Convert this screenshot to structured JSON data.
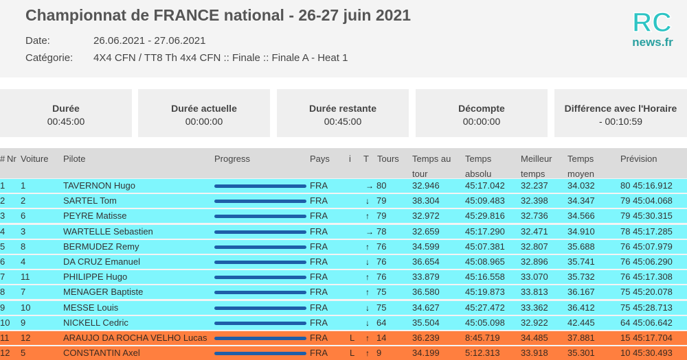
{
  "header": {
    "title": "Championnat de FRANCE national - 26-27 juin 2021",
    "date_label": "Date:",
    "date_value": "26.06.2021 - 27.06.2021",
    "category_label": "Catégorie:",
    "category_value": "4X4 CFN / TT8 Th 4x4 CFN :: Finale :: Finale A - Heat 1"
  },
  "logo": {
    "top": "RC",
    "bottom": "news.fr",
    "color_top": "#2ec4c4",
    "color_bottom": "#2aa0a0"
  },
  "cards": [
    {
      "label": "Durée",
      "value": "00:45:00"
    },
    {
      "label": "Durée actuelle",
      "value": "00:00:00"
    },
    {
      "label": "Durée restante",
      "value": "00:45:00"
    },
    {
      "label": "Décompte",
      "value": "00:00:00"
    },
    {
      "label": "Différence avec l'Horaire",
      "value": "- 00:10:59"
    }
  ],
  "columns": {
    "pos": "#",
    "nr": "Nr",
    "voiture": "Voiture",
    "pilote": "Pilote",
    "progress": "Progress",
    "pays": "Pays",
    "i": "i",
    "t": "T",
    "tours": "Tours",
    "temps_tour_1": "Temps au",
    "temps_tour_2": "tour",
    "temps_abs_1": "Temps",
    "temps_abs_2": "absolu",
    "meilleur_1": "Meilleur",
    "meilleur_2": "temps",
    "moyen_1": "Temps",
    "moyen_2": "moyen",
    "prevision": "Prévision"
  },
  "colors": {
    "cyan_row": "#7ff6fd",
    "orange_row": "#ff7f3f",
    "progress_bar": "#1e5ea8"
  },
  "rows": [
    {
      "pos": "1",
      "voiture": "1",
      "pilote": "TAVERNON Hugo",
      "pays": "FRA",
      "i": "",
      "trend": "right-arrow-icon",
      "arrow": "→",
      "tours": "80",
      "temps_tour": "32.946",
      "temps_abs": "45:17.042",
      "meilleur": "32.237",
      "moyen": "34.032",
      "prevision": "80 45:16.912",
      "status": "cyan"
    },
    {
      "pos": "2",
      "voiture": "2",
      "pilote": "SARTEL Tom",
      "pays": "FRA",
      "i": "",
      "trend": "down-arrow-icon",
      "arrow": "↓",
      "tours": "79",
      "temps_tour": "38.304",
      "temps_abs": "45:09.483",
      "meilleur": "32.398",
      "moyen": "34.347",
      "prevision": "79 45:04.068",
      "status": "cyan"
    },
    {
      "pos": "3",
      "voiture": "6",
      "pilote": "PEYRE Matisse",
      "pays": "FRA",
      "i": "",
      "trend": "up-arrow-icon",
      "arrow": "↑",
      "tours": "79",
      "temps_tour": "32.972",
      "temps_abs": "45:29.816",
      "meilleur": "32.736",
      "moyen": "34.566",
      "prevision": "79 45:30.315",
      "status": "cyan"
    },
    {
      "pos": "4",
      "voiture": "3",
      "pilote": "WARTELLE Sebastien",
      "pays": "FRA",
      "i": "",
      "trend": "right-arrow-icon",
      "arrow": "→",
      "tours": "78",
      "temps_tour": "32.659",
      "temps_abs": "45:17.290",
      "meilleur": "32.471",
      "moyen": "34.910",
      "prevision": "78 45:17.285",
      "status": "cyan"
    },
    {
      "pos": "5",
      "voiture": "8",
      "pilote": "BERMUDEZ Remy",
      "pays": "FRA",
      "i": "",
      "trend": "up-arrow-icon",
      "arrow": "↑",
      "tours": "76",
      "temps_tour": "34.599",
      "temps_abs": "45:07.381",
      "meilleur": "32.807",
      "moyen": "35.688",
      "prevision": "76 45:07.979",
      "status": "cyan"
    },
    {
      "pos": "6",
      "voiture": "4",
      "pilote": "DA CRUZ Emanuel",
      "pays": "FRA",
      "i": "",
      "trend": "down-arrow-icon",
      "arrow": "↓",
      "tours": "76",
      "temps_tour": "36.654",
      "temps_abs": "45:08.965",
      "meilleur": "32.896",
      "moyen": "35.741",
      "prevision": "76 45:06.290",
      "status": "cyan"
    },
    {
      "pos": "7",
      "voiture": "11",
      "pilote": "PHILIPPE Hugo",
      "pays": "FRA",
      "i": "",
      "trend": "up-arrow-icon",
      "arrow": "↑",
      "tours": "76",
      "temps_tour": "33.879",
      "temps_abs": "45:16.558",
      "meilleur": "33.070",
      "moyen": "35.732",
      "prevision": "76 45:17.308",
      "status": "cyan"
    },
    {
      "pos": "8",
      "voiture": "7",
      "pilote": "MENAGER Baptiste",
      "pays": "FRA",
      "i": "",
      "trend": "up-arrow-icon",
      "arrow": "↑",
      "tours": "75",
      "temps_tour": "36.580",
      "temps_abs": "45:19.873",
      "meilleur": "33.813",
      "moyen": "36.167",
      "prevision": "75 45:20.078",
      "status": "cyan"
    },
    {
      "pos": "9",
      "voiture": "10",
      "pilote": "MESSE Louis",
      "pays": "FRA",
      "i": "",
      "trend": "down-arrow-icon",
      "arrow": "↓",
      "tours": "75",
      "temps_tour": "34.627",
      "temps_abs": "45:27.472",
      "meilleur": "33.362",
      "moyen": "36.412",
      "prevision": "75 45:28.713",
      "status": "cyan"
    },
    {
      "pos": "10",
      "voiture": "9",
      "pilote": "NICKELL Cedric",
      "pays": "FRA",
      "i": "",
      "trend": "down-arrow-icon",
      "arrow": "↓",
      "tours": "64",
      "temps_tour": "35.504",
      "temps_abs": "45:05.098",
      "meilleur": "32.922",
      "moyen": "42.445",
      "prevision": "64 45:06.642",
      "status": "cyan"
    },
    {
      "pos": "11",
      "voiture": "12",
      "pilote": "ARAUJO DA ROCHA VELHO Lucas",
      "pays": "FRA",
      "i": "L",
      "trend": "up-arrow-icon",
      "arrow": "↑",
      "tours": "14",
      "temps_tour": "36.239",
      "temps_abs": "8:45.719",
      "meilleur": "34.485",
      "moyen": "37.881",
      "prevision": "15 45:17.704",
      "status": "orange"
    },
    {
      "pos": "12",
      "voiture": "5",
      "pilote": "CONSTANTIN Axel",
      "pays": "FRA",
      "i": "L",
      "trend": "up-arrow-icon",
      "arrow": "↑",
      "tours": "9",
      "temps_tour": "34.199",
      "temps_abs": "5:12.313",
      "meilleur": "33.918",
      "moyen": "35.301",
      "prevision": "10 45:30.493",
      "status": "orange"
    }
  ]
}
